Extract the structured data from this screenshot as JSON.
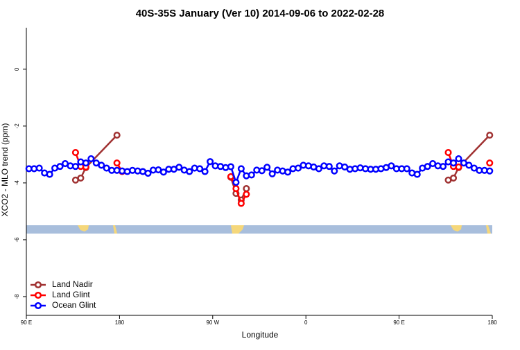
{
  "chart_data": {
    "type": "line",
    "title": "40S-35S January (Ver 10)   2014-09-06 to 2022-02-28",
    "xlabel": "Longitude",
    "ylabel": "XCO2 - MLO trend (ppm)",
    "xlim": [
      90,
      540
    ],
    "xticks": [
      {
        "value": 90,
        "label": "90 E"
      },
      180,
      {
        "value": 270,
        "label": "90 W"
      },
      {
        "value": 360,
        "label": "0"
      },
      {
        "value": 450,
        "label": "90 E"
      },
      {
        "value": 540,
        "label": "180"
      }
    ],
    "ylim": [
      -8.66,
      1.46
    ],
    "yticks": [
      0,
      -2,
      -4,
      -6,
      -8
    ],
    "legend": "bottom-left",
    "series": [
      {
        "name": "Land Nadir",
        "color": "#a03232",
        "x": [
          137.5,
          142.5,
          147.5,
          177.5,
          null,
          287.5,
          292.5,
          297.5,
          302.5,
          null,
          497.5,
          502.5,
          507.5,
          537.5
        ],
        "values": [
          -3.9,
          -3.83,
          -3.46,
          -2.32,
          null,
          -3.8,
          -4.37,
          -4.6,
          -4.2,
          null,
          -3.9,
          -3.83,
          -3.46,
          -2.32
        ]
      },
      {
        "name": "Land Glint",
        "color": "#ff0000",
        "x": [
          137.5,
          142.5,
          147.5,
          null,
          177.5,
          182.5,
          null,
          287.5,
          292.5,
          297.5,
          302.5,
          null,
          497.5,
          502.5,
          507.5,
          null,
          537.5
        ],
        "values": [
          -2.93,
          -3.42,
          -3.44,
          null,
          -3.3,
          -3.6,
          null,
          -3.78,
          -4.2,
          -4.72,
          -4.4,
          null,
          -2.93,
          -3.42,
          -3.44,
          null,
          -3.3
        ]
      },
      {
        "name": "Ocean Glint",
        "color": "#0000ff",
        "x": [
          92.5,
          97.5,
          102.5,
          107.5,
          112.5,
          117.5,
          122.5,
          127.5,
          132.5,
          137.5,
          142.5,
          147.5,
          152.5,
          157.5,
          162.5,
          167.5,
          172.5,
          177.5,
          182.5,
          187.5,
          192.5,
          197.5,
          202.5,
          207.5,
          212.5,
          217.5,
          222.5,
          227.5,
          232.5,
          237.5,
          242.5,
          247.5,
          252.5,
          257.5,
          262.5,
          267.5,
          272.5,
          277.5,
          282.5,
          287.5,
          292.5,
          297.5,
          302.5,
          307.5,
          312.5,
          317.5,
          322.5,
          327.5,
          332.5,
          337.5,
          342.5,
          347.5,
          352.5,
          357.5,
          362.5,
          367.5,
          372.5,
          377.5,
          382.5,
          387.5,
          392.5,
          397.5,
          402.5,
          407.5,
          412.5,
          417.5,
          422.5,
          427.5,
          432.5,
          437.5,
          442.5,
          447.5,
          452.5,
          457.5,
          462.5,
          467.5,
          472.5,
          477.5,
          482.5,
          487.5,
          492.5,
          497.5,
          502.5,
          507.5,
          512.5,
          517.5,
          522.5,
          527.5,
          532.5,
          537.5
        ],
        "values": [
          -3.5,
          -3.5,
          -3.48,
          -3.65,
          -3.7,
          -3.48,
          -3.42,
          -3.32,
          -3.4,
          -3.42,
          -3.26,
          -3.3,
          -3.15,
          -3.3,
          -3.38,
          -3.48,
          -3.56,
          -3.56,
          -3.58,
          -3.6,
          -3.56,
          -3.58,
          -3.6,
          -3.66,
          -3.55,
          -3.54,
          -3.62,
          -3.52,
          -3.52,
          -3.45,
          -3.55,
          -3.6,
          -3.48,
          -3.5,
          -3.6,
          -3.25,
          -3.4,
          -3.42,
          -3.46,
          -3.43,
          -3.98,
          -3.5,
          -3.75,
          -3.72,
          -3.55,
          -3.57,
          -3.45,
          -3.68,
          -3.55,
          -3.58,
          -3.62,
          -3.5,
          -3.48,
          -3.38,
          -3.4,
          -3.44,
          -3.5,
          -3.4,
          -3.42,
          -3.58,
          -3.4,
          -3.44,
          -3.52,
          -3.5,
          -3.47,
          -3.5,
          -3.52,
          -3.52,
          -3.5,
          -3.46,
          -3.4,
          -3.5,
          -3.5,
          -3.5,
          -3.65,
          -3.7,
          -3.48,
          -3.42,
          -3.32,
          -3.4,
          -3.42,
          -3.26,
          -3.3,
          -3.15,
          -3.3,
          -3.38,
          -3.48,
          -3.56,
          -3.56,
          -3.58
        ]
      }
    ]
  }
}
